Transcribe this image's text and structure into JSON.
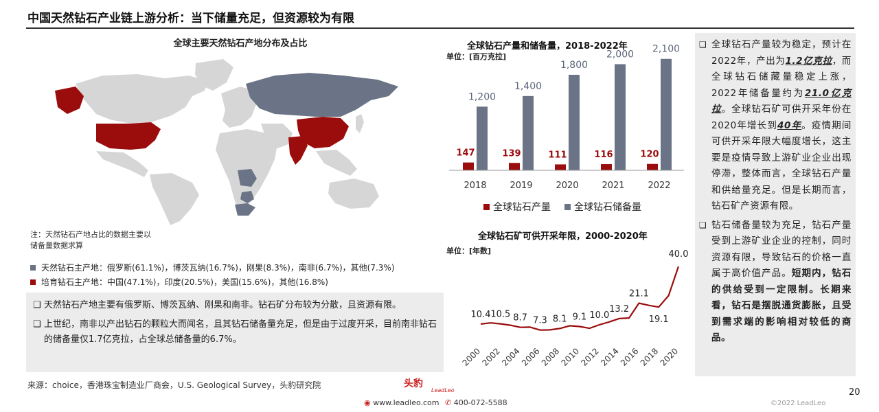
{
  "page": {
    "title": "中国天然钻石产业链上游分析：当下储量充足，但资源较为有限",
    "page_number": "20"
  },
  "map": {
    "title": "全球主要天然钻石产地分布及占比",
    "note": "注：天然钻石产地占比的数据主要以储备量数据求算",
    "legend": [
      {
        "label": "天然钻石主产地：俄罗斯(61.1%)，博茨瓦纳(16.7%)，刚果(8.3%)，南非(6.7%)，其他(7.3%)",
        "color": "#6b7486"
      },
      {
        "label": "培育钻石主产地：中国(47.1%)，印度(20.5%)，美国(15.6%)，其他(16.8%)",
        "color": "#9b0c0c"
      }
    ],
    "colors": {
      "land": "#d6d6d6",
      "natural": "#6b7486",
      "cultivated": "#9b0c0c"
    }
  },
  "notes": [
    {
      "mark": "❑",
      "text": "天然钻石产地主要有俄罗斯、博茨瓦纳、刚果和南非。钻石矿分布较为分散，且资源有限。"
    },
    {
      "mark": "❑",
      "text": "上世纪，南非以产出钻石的颗粒大而闻名，且其钻石储备量充足，但是由于过度开采，目前南非钻石的储备量仅1.7亿克拉，占全球总储备量的6.7%。"
    }
  ],
  "source": "来源：choice，香港珠宝制造业厂商会，U.S. Geological Survey，头豹研究院",
  "chart_data": [
    {
      "type": "bar",
      "title": "全球钻石产量和储备量，2018-2022年",
      "unit": "单位：[百万克拉]",
      "categories": [
        "2018",
        "2019",
        "2020",
        "2021",
        "2022"
      ],
      "series": [
        {
          "name": "全球钻石产量",
          "values": [
            147,
            139,
            111,
            116,
            120
          ],
          "color": "#9b0c0c"
        },
        {
          "name": "全球钻石储备量",
          "values": [
            1200,
            1400,
            1800,
            2000,
            2100
          ],
          "color": "#6b7486"
        }
      ],
      "data_labels": {
        "production": [
          "147",
          "139",
          "111",
          "116",
          "120"
        ],
        "reserves": [
          "1,200",
          "1,400",
          "1,800",
          "2,000",
          "2,100"
        ]
      },
      "ylim": [
        0,
        2200
      ],
      "legend_position": "bottom"
    },
    {
      "type": "line",
      "title": "全球钻石矿可供开采年限，2000-2020年",
      "unit": "单位：[年数]",
      "x": [
        2000,
        2001,
        2002,
        2003,
        2004,
        2005,
        2006,
        2007,
        2008,
        2009,
        2010,
        2011,
        2012,
        2013,
        2014,
        2015,
        2016,
        2017,
        2018,
        2019,
        2020
      ],
      "values": [
        10.4,
        11.0,
        10.5,
        9.8,
        8.7,
        8.8,
        7.3,
        7.4,
        8.1,
        9.5,
        9.1,
        8.2,
        10.0,
        11.5,
        13.2,
        13.5,
        21.1,
        20.0,
        19.1,
        25.0,
        40.0
      ],
      "point_labels": [
        {
          "x": 2000,
          "text": "10.4"
        },
        {
          "x": 2002,
          "text": "10.5"
        },
        {
          "x": 2004,
          "text": "8.7"
        },
        {
          "x": 2006,
          "text": "7.3"
        },
        {
          "x": 2008,
          "text": "8.1"
        },
        {
          "x": 2010,
          "text": "9.1"
        },
        {
          "x": 2012,
          "text": "10.0"
        },
        {
          "x": 2014,
          "text": "13.2"
        },
        {
          "x": 2016,
          "text": "21.1"
        },
        {
          "x": 2018,
          "text": "19.1"
        },
        {
          "x": 2020,
          "text": "40.0"
        }
      ],
      "tick_labels": [
        "2000",
        "2002",
        "2004",
        "2006",
        "2008",
        "2010",
        "2012",
        "2014",
        "2016",
        "2018",
        "2020"
      ],
      "ylim": [
        0,
        45
      ],
      "color": "#9b0c0c"
    }
  ],
  "right_panel": {
    "p1": {
      "mark": "❑",
      "t1": "全球钻石产量较为稳定，预计在2022年，产出为",
      "h1": "1.2亿克拉",
      "t2": "，而全球钻石储藏量稳定上涨，2022年储备量约为",
      "h2": "21.0亿克拉",
      "t3": "。全球钻石矿可供开采年份在2020年增长到",
      "h3": "40年",
      "t4": "。疫情期间可供开采年限大幅度增长，这主要是疫情导致上游矿业企业出现停滞，整体而言，全球钻石产量和供给量充足。但是长期而言，钻石矿产资源有限。"
    },
    "p2": {
      "mark": "❑",
      "t1": "钻石储备量较为充足，钻石产量受到上游矿业企业的控制，同时资源有限，导致钻石的价格一直属于高价值产品。",
      "b1": "短期内，钻石的供给受到一定限制。长期来看，钻石是摆脱通货膨胀，且受到需求端的影响相对较低的商品。"
    }
  },
  "footer": {
    "brand": "头豹",
    "brand_sub": "LeadLeo",
    "website": "www.leadleo.com",
    "phone": "400-072-5588",
    "copyright": "©2022 LeadLeo"
  }
}
